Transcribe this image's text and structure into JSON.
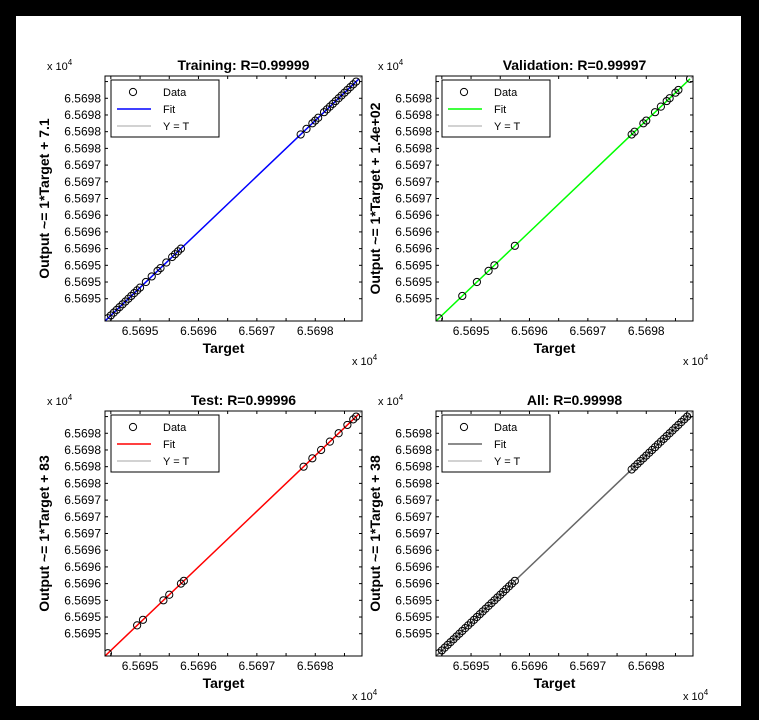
{
  "figure": {
    "style": {
      "background": "#000000",
      "panel_background": "#ffffff",
      "marker_edge": "#000000",
      "ideal_line_color": "#a6a6a6"
    }
  },
  "chart_data": [
    {
      "type": "scatter",
      "title": "Training: R=0.99999",
      "xlabel": "Target",
      "ylabel": "Output ~= 1*Target + 7.1",
      "x_multiplier": "x 10",
      "x_exponent": "4",
      "y_multiplier": "x 10",
      "y_exponent": "4",
      "x_ticks": [
        6.56945,
        6.5695,
        6.56955,
        6.5696,
        6.56965,
        6.5697,
        6.56975,
        6.5698,
        6.56985
      ],
      "x_tick_labels": [
        "",
        "6.5695",
        "",
        "6.5696",
        "",
        "6.5697",
        "",
        "6.5698",
        ""
      ],
      "y_ticks": [
        6.56948,
        6.56951,
        6.56954,
        6.56957,
        6.5696,
        6.56963,
        6.56966,
        6.56969,
        6.56972,
        6.56975,
        6.56978,
        6.56981,
        6.56984,
        6.56987
      ],
      "y_tick_labels": [
        "6.5695",
        "6.5695",
        "6.5695",
        "6.5696",
        "6.5696",
        "6.5696",
        "6.5697",
        "6.5697",
        "6.5697",
        "6.5698",
        "6.5698",
        "6.5698",
        "6.5698",
        ""
      ],
      "xlim": [
        65694.4,
        65698.8
      ],
      "ylim": [
        65694.4,
        65698.8
      ],
      "fit_color": "#0000ff",
      "legend": [
        "Data",
        "Fit",
        "Y = T"
      ],
      "legend_position": "top-left",
      "fit_line": [
        [
          65694.4,
          65694.4
        ],
        [
          65698.75,
          65698.75
        ]
      ],
      "series": [
        {
          "x": [
            65694.45,
            65694.5,
            65694.55,
            65694.6,
            65694.65,
            65694.7,
            65694.75,
            65694.8,
            65694.85,
            65694.9,
            65694.95,
            65695.0,
            65695.1,
            65695.2,
            65695.3,
            65695.35,
            65695.45,
            65695.55,
            65695.6,
            65695.65,
            65695.7,
            65697.75,
            65697.85,
            65697.95,
            65698.0,
            65698.05,
            65698.15,
            65698.2,
            65698.25,
            65698.3,
            65698.35,
            65698.4,
            65698.45,
            65698.5,
            65698.55,
            65698.6,
            65698.65,
            65698.7
          ],
          "y": [
            65694.45,
            65694.5,
            65694.55,
            65694.6,
            65694.65,
            65694.7,
            65694.75,
            65694.8,
            65694.85,
            65694.9,
            65694.95,
            65695.0,
            65695.1,
            65695.2,
            65695.3,
            65695.35,
            65695.45,
            65695.55,
            65695.6,
            65695.65,
            65695.7,
            65697.75,
            65697.85,
            65697.95,
            65698.0,
            65698.05,
            65698.15,
            65698.2,
            65698.25,
            65698.3,
            65698.35,
            65698.4,
            65698.45,
            65698.5,
            65698.55,
            65698.6,
            65698.65,
            65698.7
          ]
        }
      ]
    },
    {
      "type": "scatter",
      "title": "Validation: R=0.99997",
      "xlabel": "Target",
      "ylabel": "Output ~= 1*Target + 1.4e+02",
      "x_multiplier": "x 10",
      "x_exponent": "4",
      "y_multiplier": "x 10",
      "y_exponent": "4",
      "x_ticks": [
        6.56945,
        6.5695,
        6.56955,
        6.5696,
        6.56965,
        6.5697,
        6.56975,
        6.5698,
        6.56985
      ],
      "x_tick_labels": [
        "",
        "6.5695",
        "",
        "6.5696",
        "",
        "6.5697",
        "",
        "6.5698",
        ""
      ],
      "y_ticks": [
        6.56948,
        6.56951,
        6.56954,
        6.56957,
        6.5696,
        6.56963,
        6.56966,
        6.56969,
        6.56972,
        6.56975,
        6.56978,
        6.56981,
        6.56984,
        6.56987
      ],
      "y_tick_labels": [
        "6.5695",
        "6.5695",
        "6.5695",
        "6.5696",
        "6.5696",
        "6.5696",
        "6.5697",
        "6.5697",
        "6.5697",
        "6.5698",
        "6.5698",
        "6.5698",
        "6.5698",
        ""
      ],
      "xlim": [
        65694.4,
        65698.8
      ],
      "ylim": [
        65694.4,
        65698.8
      ],
      "fit_color": "#00ff00",
      "legend": [
        "Data",
        "Fit",
        "Y = T"
      ],
      "legend_position": "top-left",
      "fit_line": [
        [
          65694.4,
          65694.4
        ],
        [
          65698.75,
          65698.75
        ]
      ],
      "series": [
        {
          "x": [
            65694.45,
            65694.85,
            65695.1,
            65695.3,
            65695.4,
            65695.75,
            65697.75,
            65697.8,
            65697.95,
            65698.0,
            65698.15,
            65698.25,
            65698.35,
            65698.4,
            65698.5,
            65698.55,
            65698.75
          ],
          "y": [
            65694.45,
            65694.85,
            65695.1,
            65695.3,
            65695.4,
            65695.75,
            65697.75,
            65697.8,
            65697.95,
            65698.0,
            65698.15,
            65698.25,
            65698.35,
            65698.4,
            65698.5,
            65698.55,
            65698.75
          ]
        }
      ]
    },
    {
      "type": "scatter",
      "title": "Test: R=0.99996",
      "xlabel": "Target",
      "ylabel": "Output ~= 1*Target + 83",
      "x_multiplier": "x 10",
      "x_exponent": "4",
      "y_multiplier": "x 10",
      "y_exponent": "4",
      "x_ticks": [
        6.56945,
        6.5695,
        6.56955,
        6.5696,
        6.56965,
        6.5697,
        6.56975,
        6.5698,
        6.56985
      ],
      "x_tick_labels": [
        "",
        "6.5695",
        "",
        "6.5696",
        "",
        "6.5697",
        "",
        "6.5698",
        ""
      ],
      "y_ticks": [
        6.56948,
        6.56951,
        6.56954,
        6.56957,
        6.5696,
        6.56963,
        6.56966,
        6.56969,
        6.56972,
        6.56975,
        6.56978,
        6.56981,
        6.56984,
        6.56987
      ],
      "y_tick_labels": [
        "6.5695",
        "6.5695",
        "6.5695",
        "6.5696",
        "6.5696",
        "6.5696",
        "6.5697",
        "6.5697",
        "6.5697",
        "6.5698",
        "6.5698",
        "6.5698",
        "6.5698",
        ""
      ],
      "xlim": [
        65694.4,
        65698.8
      ],
      "ylim": [
        65694.4,
        65698.8
      ],
      "fit_color": "#ff0000",
      "legend": [
        "Data",
        "Fit",
        "Y = T"
      ],
      "legend_position": "top-left",
      "fit_line": [
        [
          65694.4,
          65694.4
        ],
        [
          65698.75,
          65698.75
        ]
      ],
      "series": [
        {
          "x": [
            65694.45,
            65694.95,
            65695.05,
            65695.4,
            65695.5,
            65695.7,
            65695.75,
            65697.8,
            65697.95,
            65698.1,
            65698.25,
            65698.4,
            65698.55,
            65698.65,
            65698.7
          ],
          "y": [
            65694.45,
            65694.95,
            65695.05,
            65695.4,
            65695.5,
            65695.7,
            65695.75,
            65697.8,
            65697.95,
            65698.1,
            65698.25,
            65698.4,
            65698.55,
            65698.65,
            65698.7
          ]
        }
      ]
    },
    {
      "type": "scatter",
      "title": "All: R=0.99998",
      "xlabel": "Target",
      "ylabel": "Output ~= 1*Target + 38",
      "x_multiplier": "x 10",
      "x_exponent": "4",
      "y_multiplier": "x 10",
      "y_exponent": "4",
      "x_ticks": [
        6.56945,
        6.5695,
        6.56955,
        6.5696,
        6.56965,
        6.5697,
        6.56975,
        6.5698,
        6.56985
      ],
      "x_tick_labels": [
        "",
        "6.5695",
        "",
        "6.5696",
        "",
        "6.5697",
        "",
        "6.5698",
        ""
      ],
      "y_ticks": [
        6.56948,
        6.56951,
        6.56954,
        6.56957,
        6.5696,
        6.56963,
        6.56966,
        6.56969,
        6.56972,
        6.56975,
        6.56978,
        6.56981,
        6.56984,
        6.56987
      ],
      "y_tick_labels": [
        "6.5695",
        "6.5695",
        "6.5695",
        "6.5696",
        "6.5696",
        "6.5696",
        "6.5697",
        "6.5697",
        "6.5697",
        "6.5698",
        "6.5698",
        "6.5698",
        "6.5698",
        ""
      ],
      "xlim": [
        65694.4,
        65698.8
      ],
      "ylim": [
        65694.4,
        65698.8
      ],
      "fit_color": "#666666",
      "legend": [
        "Data",
        "Fit",
        "Y = T"
      ],
      "legend_position": "top-left",
      "fit_line": [
        [
          65694.4,
          65694.4
        ],
        [
          65698.75,
          65698.75
        ]
      ],
      "series": [
        {
          "x": [
            65694.45,
            65694.5,
            65694.55,
            65694.6,
            65694.65,
            65694.7,
            65694.75,
            65694.8,
            65694.85,
            65694.9,
            65694.95,
            65695.0,
            65695.05,
            65695.1,
            65695.15,
            65695.2,
            65695.25,
            65695.3,
            65695.35,
            65695.4,
            65695.45,
            65695.5,
            65695.55,
            65695.6,
            65695.65,
            65695.7,
            65695.75,
            65697.75,
            65697.8,
            65697.85,
            65697.9,
            65697.95,
            65698.0,
            65698.05,
            65698.1,
            65698.15,
            65698.2,
            65698.25,
            65698.3,
            65698.35,
            65698.4,
            65698.45,
            65698.5,
            65698.55,
            65698.6,
            65698.65,
            65698.7,
            65698.75
          ],
          "y": [
            65694.45,
            65694.5,
            65694.55,
            65694.6,
            65694.65,
            65694.7,
            65694.75,
            65694.8,
            65694.85,
            65694.9,
            65694.95,
            65695.0,
            65695.05,
            65695.1,
            65695.15,
            65695.2,
            65695.25,
            65695.3,
            65695.35,
            65695.4,
            65695.45,
            65695.5,
            65695.55,
            65695.6,
            65695.65,
            65695.7,
            65695.75,
            65697.75,
            65697.8,
            65697.85,
            65697.9,
            65697.95,
            65698.0,
            65698.05,
            65698.1,
            65698.15,
            65698.2,
            65698.25,
            65698.3,
            65698.35,
            65698.4,
            65698.45,
            65698.5,
            65698.55,
            65698.6,
            65698.65,
            65698.7,
            65698.75
          ]
        }
      ]
    }
  ]
}
